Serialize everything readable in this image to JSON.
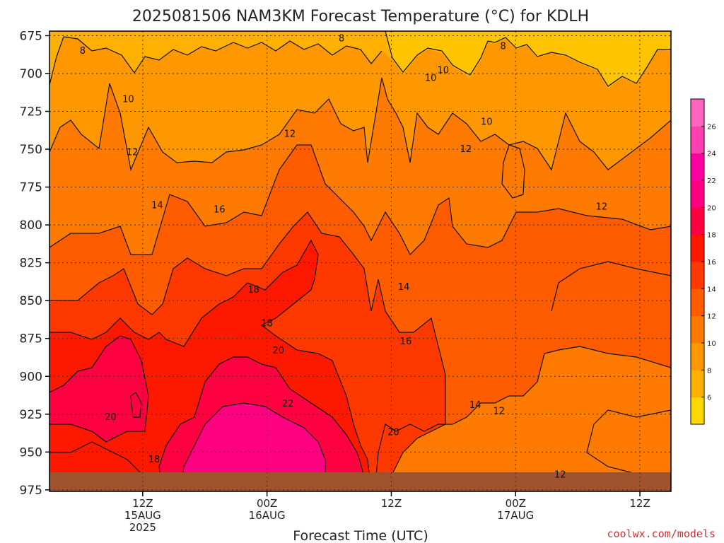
{
  "chart_data": {
    "type": "contour",
    "title": "2025081506 NAM3KM Forecast Temperature (°C) for KDLH",
    "xlabel": "Forecast Time (UTC)",
    "ylabel": "",
    "y_axis": {
      "quantity": "pressure (hPa)",
      "ticks": [
        675,
        700,
        725,
        750,
        775,
        800,
        825,
        850,
        875,
        900,
        925,
        950,
        975
      ],
      "range": [
        672,
        976
      ],
      "inverted": true
    },
    "x_axis": {
      "range_hours": [
        -9,
        51
      ],
      "ticks": [
        {
          "hour": 0,
          "lines": [
            "12Z",
            "15AUG",
            "2025"
          ]
        },
        {
          "hour": 12,
          "lines": [
            "00Z",
            "16AUG"
          ]
        },
        {
          "hour": 24,
          "lines": [
            "12Z"
          ]
        },
        {
          "hour": 36,
          "lines": [
            "00Z",
            "17AUG"
          ]
        },
        {
          "hour": 48,
          "lines": [
            "12Z"
          ]
        }
      ]
    },
    "grid": true,
    "colorbar": {
      "placement": "right",
      "levels": [
        6,
        8,
        10,
        12,
        14,
        16,
        18,
        20,
        22,
        24,
        26
      ],
      "colors": [
        "#ffd800",
        "#ffb000",
        "#ff9800",
        "#ff7a00",
        "#ff5c00",
        "#ff3800",
        "#ff1800",
        "#ff0040",
        "#ff0080",
        "#ff00a0",
        "#ff40b0",
        "#ff66c0"
      ]
    },
    "ground_color": "#a0522d",
    "contour_labels": [
      {
        "value": "8",
        "hour": -5.8,
        "p": 685
      },
      {
        "value": "8",
        "hour": 19.2,
        "p": 677
      },
      {
        "value": "8",
        "hour": 34.8,
        "p": 682
      },
      {
        "value": "10",
        "hour": -1.4,
        "p": 717
      },
      {
        "value": "10",
        "hour": 27.8,
        "p": 703
      },
      {
        "value": "10",
        "hour": 29.0,
        "p": 698
      },
      {
        "value": "10",
        "hour": 33.2,
        "p": 732
      },
      {
        "value": "12",
        "hour": -1.0,
        "p": 752
      },
      {
        "value": "12",
        "hour": 14.2,
        "p": 740
      },
      {
        "value": "12",
        "hour": 31.2,
        "p": 750
      },
      {
        "value": "12",
        "hour": 44.3,
        "p": 788
      },
      {
        "value": "12",
        "hour": 34.4,
        "p": 923
      },
      {
        "value": "12",
        "hour": 40.3,
        "p": 965
      },
      {
        "value": "14",
        "hour": 1.4,
        "p": 787
      },
      {
        "value": "14",
        "hour": 25.2,
        "p": 841
      },
      {
        "value": "14",
        "hour": 32.1,
        "p": 919
      },
      {
        "value": "16",
        "hour": 7.4,
        "p": 790
      },
      {
        "value": "16",
        "hour": 25.4,
        "p": 877
      },
      {
        "value": "18",
        "hour": 10.7,
        "p": 843
      },
      {
        "value": "18",
        "hour": 12.0,
        "p": 865
      },
      {
        "value": "18",
        "hour": 1.1,
        "p": 955
      },
      {
        "value": "20",
        "hour": -3.1,
        "p": 927
      },
      {
        "value": "20",
        "hour": 13.1,
        "p": 883
      },
      {
        "value": "20",
        "hour": 24.2,
        "p": 937
      },
      {
        "value": "22",
        "hour": 14.0,
        "p": 918
      }
    ]
  },
  "credit": "coolwx.com/models"
}
